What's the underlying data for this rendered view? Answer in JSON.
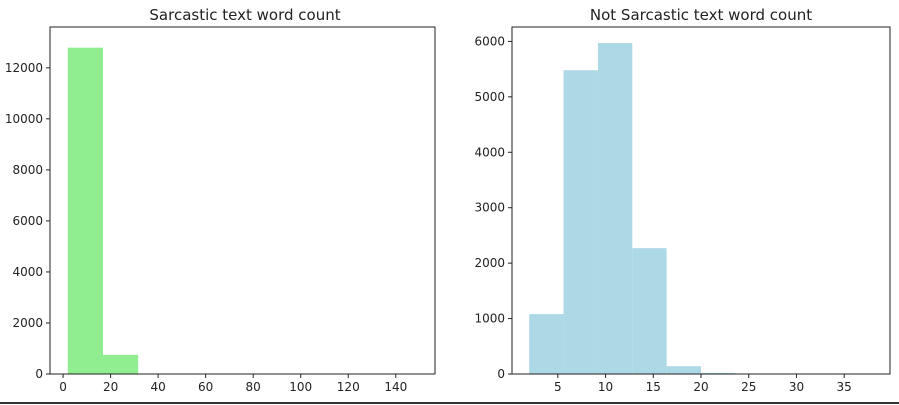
{
  "chart_data": [
    {
      "type": "bar",
      "title": "Sarcastic text word count",
      "xlabel": "",
      "ylabel": "",
      "xlim": [
        -5.5,
        156.5
      ],
      "ylim": [
        0,
        13600
      ],
      "xticks": [
        0,
        20,
        40,
        60,
        80,
        100,
        120,
        140
      ],
      "yticks": [
        0,
        2000,
        4000,
        6000,
        8000,
        10000,
        12000
      ],
      "bar_color": "#90ee90",
      "grid": false,
      "bins": [
        {
          "start": 2,
          "end": 16.8,
          "value": 12790
        },
        {
          "start": 16.8,
          "end": 31.6,
          "value": 750
        },
        {
          "start": 31.6,
          "end": 46.4,
          "value": 4
        },
        {
          "start": 46.4,
          "end": 61.2,
          "value": 0
        },
        {
          "start": 61.2,
          "end": 76,
          "value": 0
        },
        {
          "start": 76,
          "end": 90.8,
          "value": 0
        },
        {
          "start": 90.8,
          "end": 105.6,
          "value": 0
        },
        {
          "start": 105.6,
          "end": 120.4,
          "value": 0
        },
        {
          "start": 120.4,
          "end": 135.2,
          "value": 0
        },
        {
          "start": 135.2,
          "end": 150,
          "value": 1
        }
      ]
    },
    {
      "type": "bar",
      "title": "Not Sarcastic text word count",
      "xlabel": "",
      "ylabel": "",
      "xlim": [
        0.2,
        39.8
      ],
      "ylim": [
        0,
        6260
      ],
      "xticks": [
        5,
        10,
        15,
        20,
        25,
        30,
        35
      ],
      "yticks": [
        0,
        1000,
        2000,
        3000,
        4000,
        5000,
        6000
      ],
      "bar_color": "#add8e6",
      "grid": false,
      "bins": [
        {
          "start": 2,
          "end": 5.6,
          "value": 1080
        },
        {
          "start": 5.6,
          "end": 9.2,
          "value": 5480
        },
        {
          "start": 9.2,
          "end": 12.8,
          "value": 5970
        },
        {
          "start": 12.8,
          "end": 16.4,
          "value": 2270
        },
        {
          "start": 16.4,
          "end": 20,
          "value": 140
        },
        {
          "start": 20,
          "end": 23.6,
          "value": 20
        },
        {
          "start": 23.6,
          "end": 27.2,
          "value": 4
        },
        {
          "start": 27.2,
          "end": 30.8,
          "value": 2
        },
        {
          "start": 30.8,
          "end": 34.4,
          "value": 1
        },
        {
          "start": 34.4,
          "end": 38,
          "value": 1
        }
      ]
    }
  ]
}
